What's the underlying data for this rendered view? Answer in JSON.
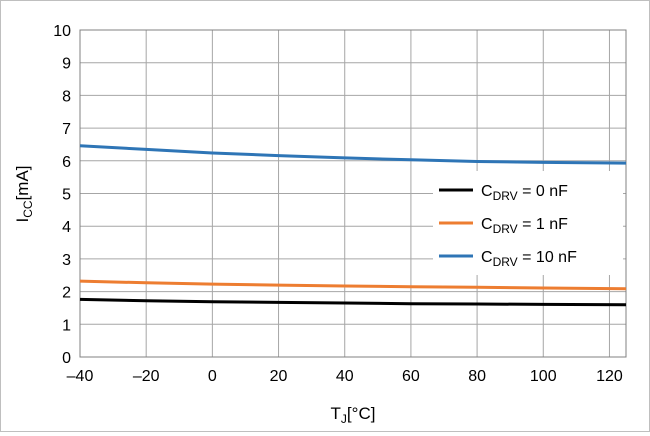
{
  "chart_data": {
    "type": "line",
    "title": "",
    "xlabel": {
      "main": "T",
      "sub": "J",
      "unit": "[°C]"
    },
    "ylabel": {
      "main": "I",
      "sub": "CC",
      "unit": "[mA]"
    },
    "xlim": [
      -40,
      125
    ],
    "ylim": [
      0,
      10
    ],
    "xticks": [
      -40,
      -20,
      0,
      20,
      40,
      60,
      80,
      100,
      120
    ],
    "xtick_labels": [
      "–40",
      "–20",
      "0",
      "20",
      "40",
      "60",
      "80",
      "100",
      "120"
    ],
    "yticks": [
      0,
      1,
      2,
      3,
      4,
      5,
      6,
      7,
      8,
      9,
      10
    ],
    "ytick_labels": [
      "0",
      "1",
      "2",
      "3",
      "4",
      "5",
      "6",
      "7",
      "8",
      "9",
      "10"
    ],
    "grid": true,
    "legend": "right",
    "series": [
      {
        "name": {
          "main": "C",
          "sub": "DRV",
          "rest": " = 0 nF"
        },
        "color": "#000000",
        "x": [
          -40,
          -20,
          0,
          20,
          40,
          60,
          80,
          100,
          125
        ],
        "y": [
          1.76,
          1.72,
          1.69,
          1.67,
          1.65,
          1.63,
          1.62,
          1.61,
          1.6
        ]
      },
      {
        "name": {
          "main": "C",
          "sub": "DRV",
          "rest": " = 1 nF"
        },
        "color": "#ed7d31",
        "x": [
          -40,
          -20,
          0,
          20,
          40,
          60,
          80,
          100,
          125
        ],
        "y": [
          2.32,
          2.27,
          2.23,
          2.2,
          2.17,
          2.15,
          2.13,
          2.11,
          2.09
        ]
      },
      {
        "name": {
          "main": "C",
          "sub": "DRV",
          "rest": " = 10 nF"
        },
        "color": "#2e75b6",
        "x": [
          -40,
          -20,
          0,
          20,
          40,
          60,
          80,
          100,
          125
        ],
        "y": [
          6.46,
          6.35,
          6.24,
          6.16,
          6.09,
          6.03,
          5.98,
          5.95,
          5.93
        ]
      }
    ]
  }
}
